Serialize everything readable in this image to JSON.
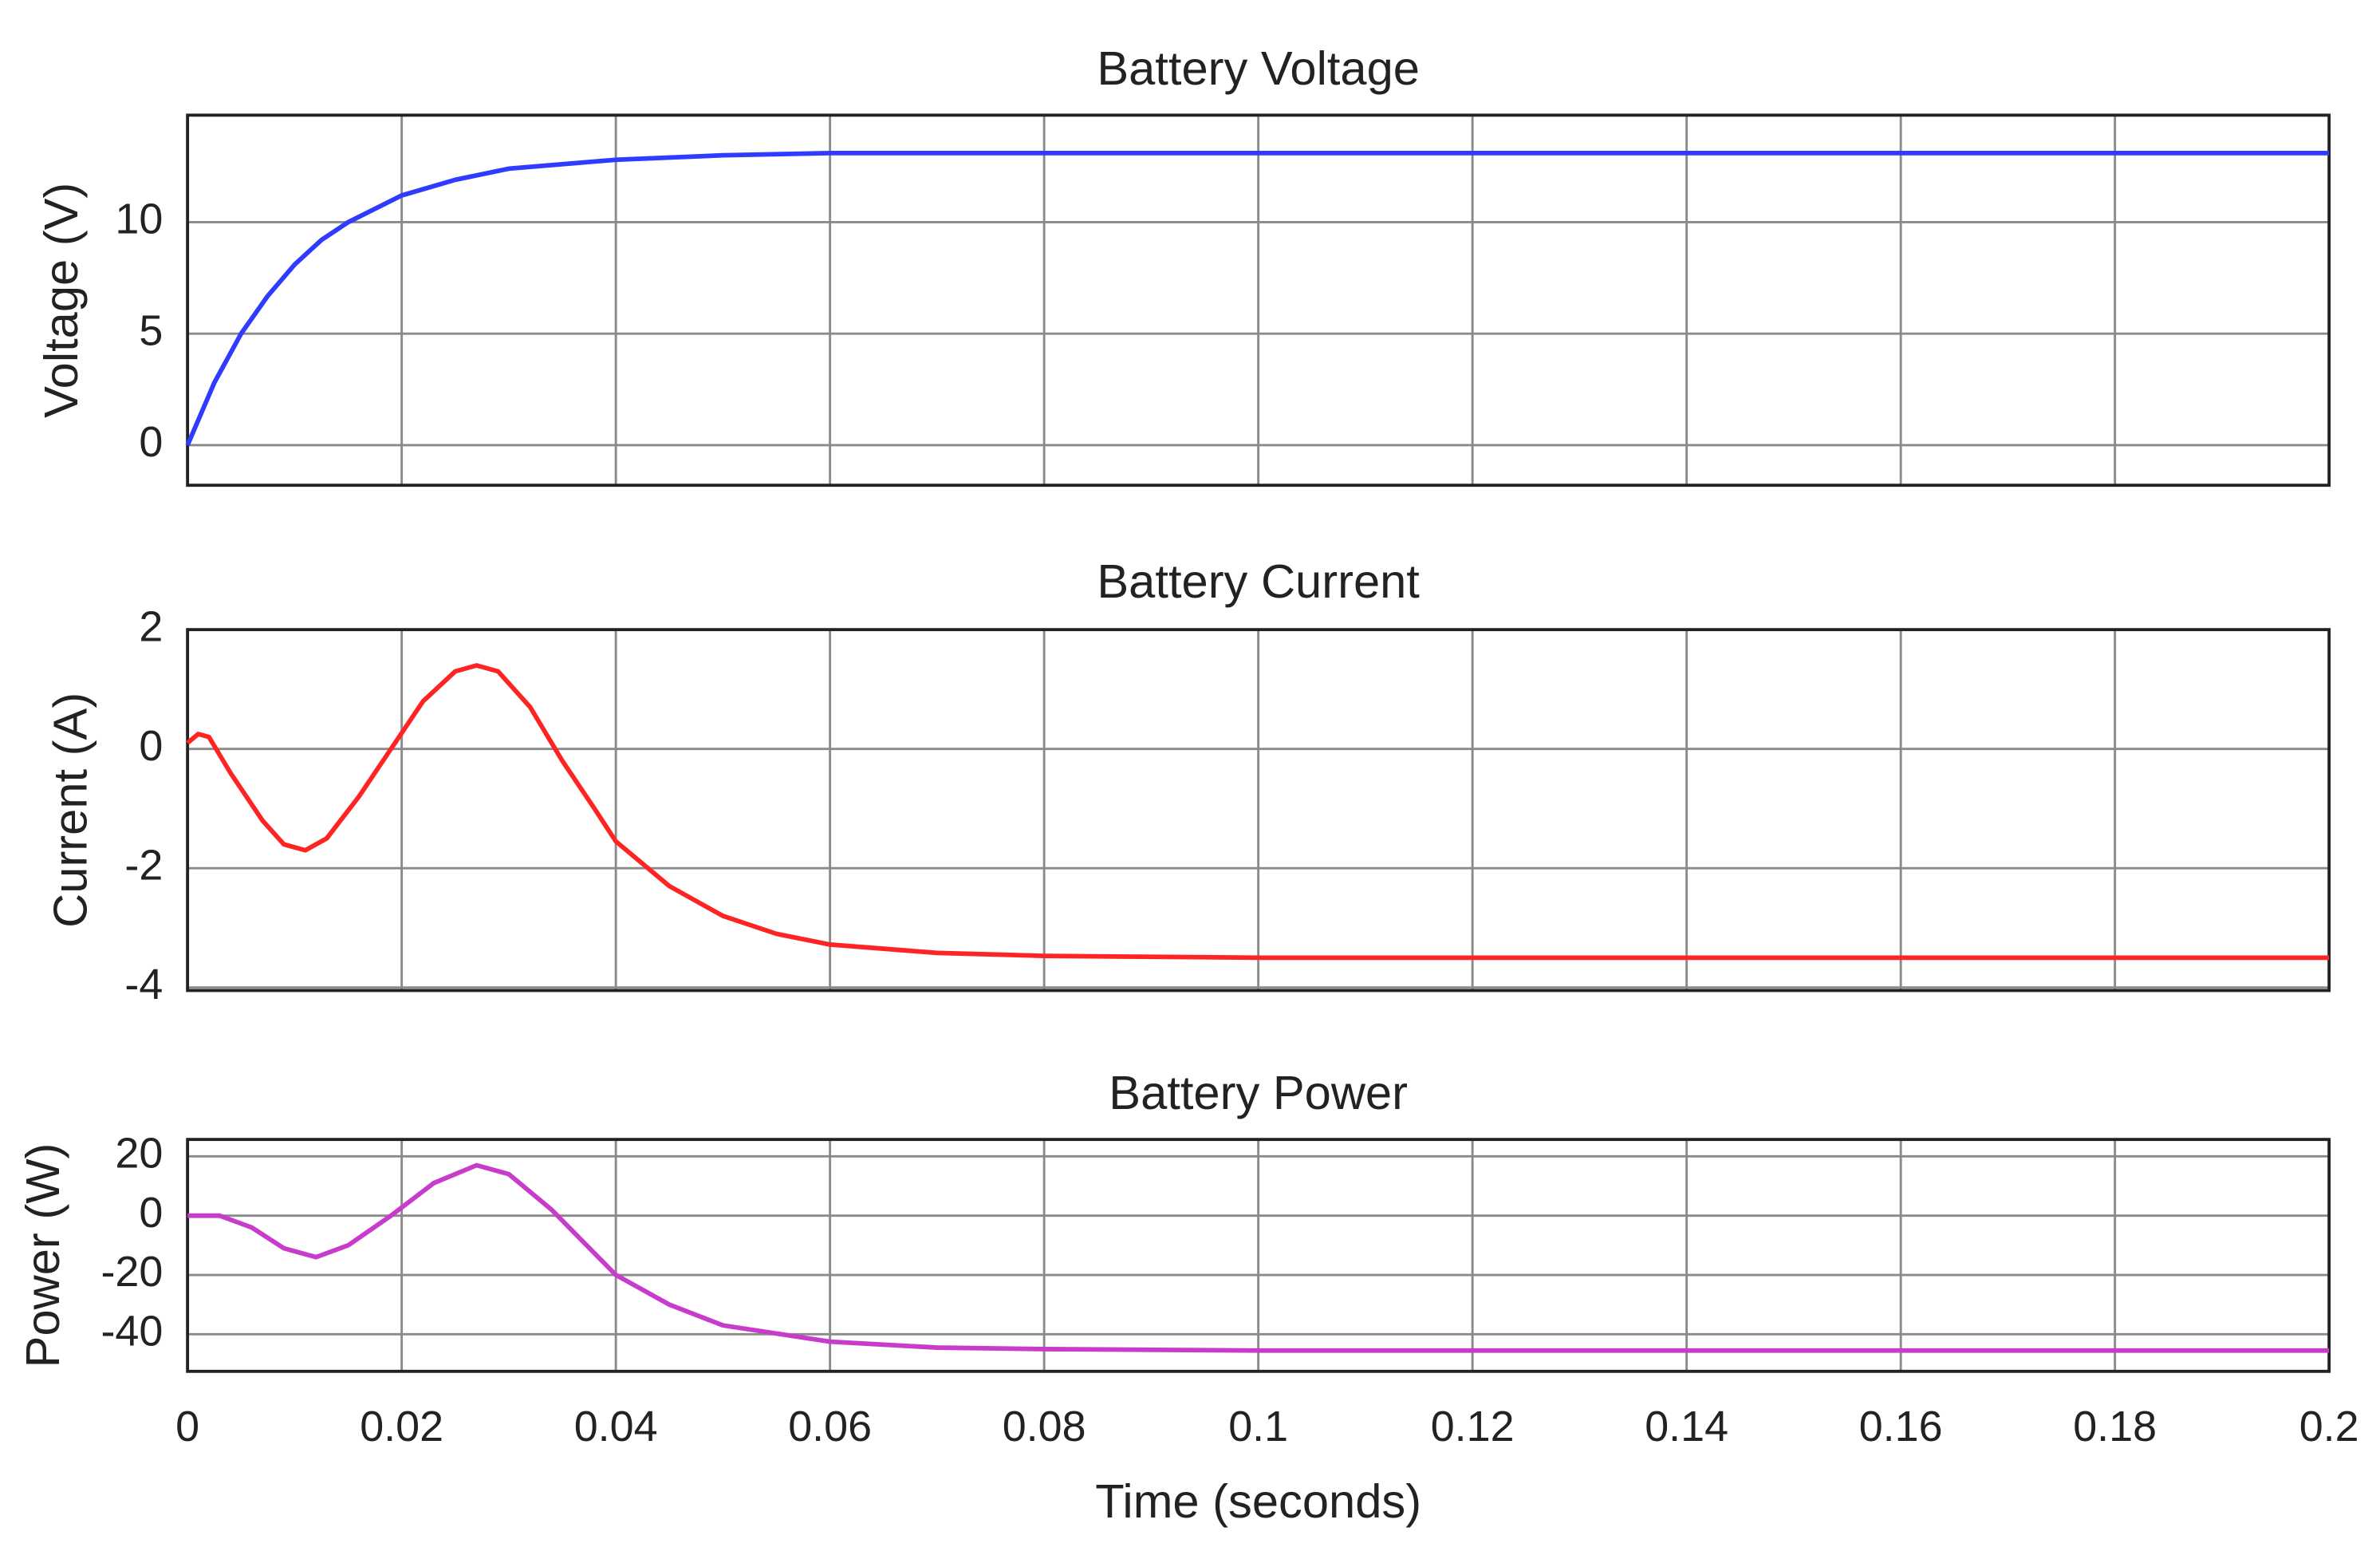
{
  "chart_data": [
    {
      "type": "line",
      "title": "Battery Voltage",
      "ylabel": "Voltage (V)",
      "x": [
        0,
        0.0025,
        0.005,
        0.0075,
        0.01,
        0.0125,
        0.015,
        0.02,
        0.025,
        0.03,
        0.04,
        0.05,
        0.06,
        0.08,
        0.1,
        0.15,
        0.2
      ],
      "series": [
        {
          "name": "Voltage",
          "color": "#2f3cff",
          "values": [
            0,
            2.8,
            5.0,
            6.7,
            8.1,
            9.2,
            10.0,
            11.2,
            11.9,
            12.4,
            12.8,
            13.0,
            13.1,
            13.1,
            13.1,
            13.1,
            13.1
          ]
        }
      ],
      "xlim": [
        0,
        0.2
      ],
      "xticks": [
        0,
        0.02,
        0.04,
        0.06,
        0.08,
        0.1,
        0.12,
        0.14,
        0.16,
        0.18,
        0.2
      ],
      "ylim": [
        -1.8,
        14.8
      ],
      "yticks": [
        0,
        5,
        10
      ],
      "grid": true
    },
    {
      "type": "line",
      "title": "Battery Current",
      "ylabel": "Current (A)",
      "x": [
        0,
        0.001,
        0.002,
        0.004,
        0.007,
        0.009,
        0.011,
        0.013,
        0.016,
        0.019,
        0.022,
        0.025,
        0.027,
        0.029,
        0.032,
        0.035,
        0.038,
        0.04,
        0.045,
        0.05,
        0.055,
        0.06,
        0.07,
        0.08,
        0.1,
        0.2
      ],
      "series": [
        {
          "name": "Current",
          "color": "#ff2424",
          "values": [
            0.1,
            0.25,
            0.2,
            -0.4,
            -1.2,
            -1.6,
            -1.7,
            -1.5,
            -0.8,
            0,
            0.8,
            1.3,
            1.4,
            1.3,
            0.7,
            -0.2,
            -1.0,
            -1.55,
            -2.3,
            -2.8,
            -3.1,
            -3.28,
            -3.42,
            -3.47,
            -3.5,
            -3.5
          ]
        }
      ],
      "xlim": [
        0,
        0.2
      ],
      "xticks": [
        0,
        0.02,
        0.04,
        0.06,
        0.08,
        0.1,
        0.12,
        0.14,
        0.16,
        0.18,
        0.2
      ],
      "ylim": [
        -4.05,
        2
      ],
      "yticks": [
        -4,
        -2,
        0,
        2
      ],
      "grid": true
    },
    {
      "type": "line",
      "title": "Battery Power",
      "ylabel": "Power (W)",
      "xlabel": "Time (seconds)",
      "x": [
        0,
        0.003,
        0.006,
        0.009,
        0.012,
        0.015,
        0.019,
        0.023,
        0.027,
        0.03,
        0.034,
        0.04,
        0.045,
        0.05,
        0.06,
        0.07,
        0.08,
        0.1,
        0.2
      ],
      "series": [
        {
          "name": "Power",
          "color": "#c83ccb",
          "values": [
            0,
            0,
            -4,
            -11,
            -14,
            -10,
            0,
            11,
            17,
            14,
            2,
            -20,
            -30,
            -37,
            -42.5,
            -44.5,
            -45,
            -45.5,
            -45.5
          ]
        }
      ],
      "xlim": [
        0,
        0.2
      ],
      "xticks": [
        0,
        0.02,
        0.04,
        0.06,
        0.08,
        0.1,
        0.12,
        0.14,
        0.16,
        0.18,
        0.2
      ],
      "ylim": [
        -52.5,
        25.7
      ],
      "yticks": [
        -40,
        -20,
        0,
        20
      ],
      "grid": true
    }
  ]
}
